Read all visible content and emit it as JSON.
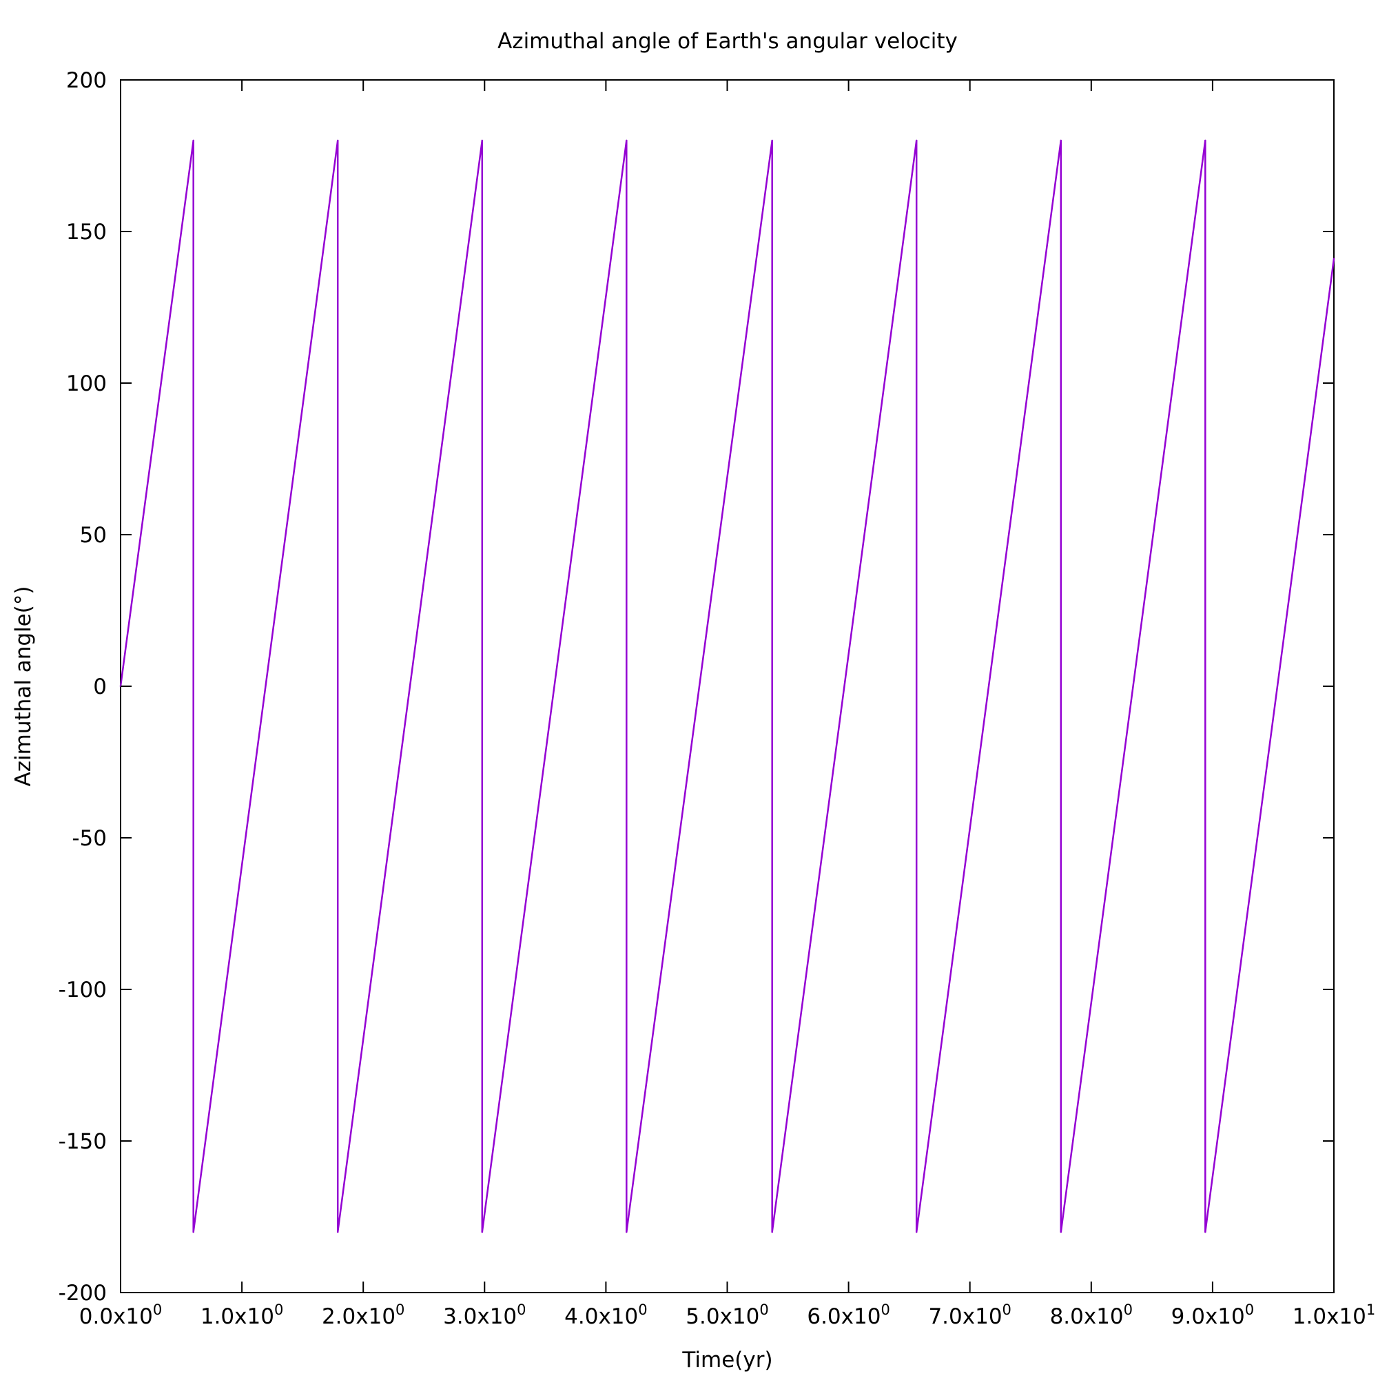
{
  "chart_data": {
    "type": "line",
    "title": "Azimuthal angle of Earth's angular velocity",
    "xlabel": "Time(yr)",
    "ylabel": "Azimuthal angle(°)",
    "xlim": [
      0,
      10
    ],
    "ylim": [
      -200,
      200
    ],
    "grid": false,
    "legend": "none",
    "x_ticks": [
      {
        "value": 0,
        "mantissa": "0.0x10",
        "exponent": "0"
      },
      {
        "value": 1,
        "mantissa": "1.0x10",
        "exponent": "0"
      },
      {
        "value": 2,
        "mantissa": "2.0x10",
        "exponent": "0"
      },
      {
        "value": 3,
        "mantissa": "3.0x10",
        "exponent": "0"
      },
      {
        "value": 4,
        "mantissa": "4.0x10",
        "exponent": "0"
      },
      {
        "value": 5,
        "mantissa": "5.0x10",
        "exponent": "0"
      },
      {
        "value": 6,
        "mantissa": "6.0x10",
        "exponent": "0"
      },
      {
        "value": 7,
        "mantissa": "7.0x10",
        "exponent": "0"
      },
      {
        "value": 8,
        "mantissa": "8.0x10",
        "exponent": "0"
      },
      {
        "value": 9,
        "mantissa": "9.0x10",
        "exponent": "0"
      },
      {
        "value": 10,
        "mantissa": "1.0x10",
        "exponent": "1"
      }
    ],
    "y_ticks": [
      {
        "value": 200,
        "label": "200"
      },
      {
        "value": 150,
        "label": "150"
      },
      {
        "value": 100,
        "label": "100"
      },
      {
        "value": 50,
        "label": "50"
      },
      {
        "value": 0,
        "label": "0"
      },
      {
        "value": -50,
        "label": "-50"
      },
      {
        "value": -100,
        "label": "-100"
      },
      {
        "value": -150,
        "label": "-150"
      },
      {
        "value": -200,
        "label": "-200"
      }
    ],
    "series": [
      {
        "color": "#9400d3",
        "points": [
          [
            0.0,
            0
          ],
          [
            0.6,
            180
          ],
          [
            0.6,
            -180
          ],
          [
            1.79,
            180
          ],
          [
            1.79,
            -180
          ],
          [
            2.98,
            180
          ],
          [
            2.98,
            -180
          ],
          [
            4.17,
            180
          ],
          [
            4.17,
            -180
          ],
          [
            5.37,
            180
          ],
          [
            5.37,
            -180
          ],
          [
            6.56,
            180
          ],
          [
            6.56,
            -180
          ],
          [
            7.75,
            180
          ],
          [
            7.75,
            -180
          ],
          [
            8.94,
            180
          ],
          [
            8.94,
            -180
          ],
          [
            10.0,
            141
          ]
        ]
      }
    ]
  }
}
